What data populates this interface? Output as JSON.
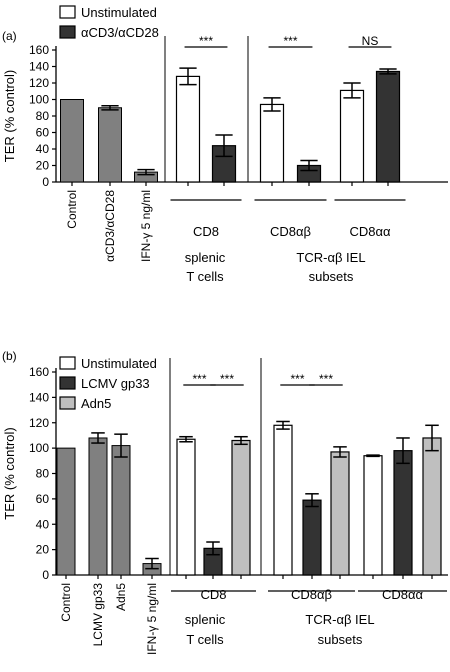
{
  "chart_data": [
    {
      "panel_label": "(a)",
      "type": "bar",
      "ylabel": "TER (% control)",
      "ylim": [
        0,
        160
      ],
      "yticks": [
        0,
        20,
        40,
        60,
        80,
        100,
        120,
        140,
        160
      ],
      "legend": {
        "placement": "top-left",
        "entries": [
          {
            "name": "Unstimulated",
            "color": "#ffffff"
          },
          {
            "name": "αCD3/αCD28",
            "color": "#333333"
          }
        ]
      },
      "controls": {
        "color": "#808080",
        "categories": [
          "Control",
          "αCD3/αCD28",
          "IFN-γ 5 ng/ml"
        ],
        "values": [
          100,
          90,
          12
        ],
        "errors": [
          0,
          2.5,
          3
        ]
      },
      "groups": [
        {
          "label": "CD8",
          "bars": [
            {
              "series": "Unstimulated",
              "value": 128,
              "error": 10
            },
            {
              "series": "αCD3/αCD28",
              "value": 44,
              "error": 13
            }
          ]
        },
        {
          "label": "CD8αβ",
          "bars": [
            {
              "series": "Unstimulated",
              "value": 94,
              "error": 8
            },
            {
              "series": "αCD3/αCD28",
              "value": 20,
              "error": 6
            }
          ]
        },
        {
          "label": "CD8αα",
          "bars": [
            {
              "series": "Unstimulated",
              "value": 111,
              "error": 9
            },
            {
              "series": "αCD3/αCD28",
              "value": 134,
              "error": 3
            }
          ]
        }
      ],
      "significance": [
        {
          "group": 0,
          "text": "***"
        },
        {
          "group": 1,
          "text": "***"
        },
        {
          "group": 2,
          "text": "NS"
        }
      ],
      "section_labels": [
        {
          "lines": [
            "splenic",
            "T cells"
          ]
        },
        {
          "lines": [
            "TCR-αβ IEL",
            "subsets"
          ]
        }
      ]
    },
    {
      "panel_label": "(b)",
      "type": "bar",
      "ylabel": "TER (% control)",
      "ylim": [
        0,
        160
      ],
      "yticks": [
        0,
        20,
        40,
        60,
        80,
        100,
        120,
        140,
        160
      ],
      "legend": {
        "placement": "top-left",
        "entries": [
          {
            "name": "Unstimulated",
            "color": "#ffffff"
          },
          {
            "name": "LCMV gp33",
            "color": "#333333"
          },
          {
            "name": "Adn5",
            "color": "#bfbfbf"
          }
        ]
      },
      "controls": {
        "color": "#808080",
        "categories": [
          "Control",
          "LCMV gp33",
          "Adn5",
          "IFN-γ 5 ng/ml"
        ],
        "values": [
          100,
          108,
          102,
          9
        ],
        "errors": [
          0,
          4,
          9,
          4
        ]
      },
      "groups": [
        {
          "label": "CD8",
          "bars": [
            {
              "series": "Unstimulated",
              "value": 107,
              "error": 2
            },
            {
              "series": "LCMV gp33",
              "value": 21,
              "error": 5
            },
            {
              "series": "Adn5",
              "value": 106,
              "error": 3
            }
          ]
        },
        {
          "label": "CD8αβ",
          "bars": [
            {
              "series": "Unstimulated",
              "value": 118,
              "error": 3
            },
            {
              "series": "LCMV gp33",
              "value": 59,
              "error": 5
            },
            {
              "series": "Adn5",
              "value": 97,
              "error": 4
            }
          ]
        },
        {
          "label": "CD8αα",
          "bars": [
            {
              "series": "Unstimulated",
              "value": 94,
              "error": 0.5
            },
            {
              "series": "LCMV gp33",
              "value": 98,
              "error": 10
            },
            {
              "series": "Adn5",
              "value": 108,
              "error": 10
            }
          ]
        }
      ],
      "significance": [
        {
          "group": 0,
          "from": 0,
          "to": 1,
          "text": "***"
        },
        {
          "group": 0,
          "from": 1,
          "to": 2,
          "text": "***"
        },
        {
          "group": 1,
          "from": 0,
          "to": 1,
          "text": "***"
        },
        {
          "group": 1,
          "from": 1,
          "to": 2,
          "text": "***"
        }
      ],
      "section_labels": [
        {
          "lines": [
            "splenic",
            "T cells"
          ]
        },
        {
          "lines": [
            "TCR-αβ IEL",
            "subsets"
          ]
        }
      ]
    }
  ]
}
